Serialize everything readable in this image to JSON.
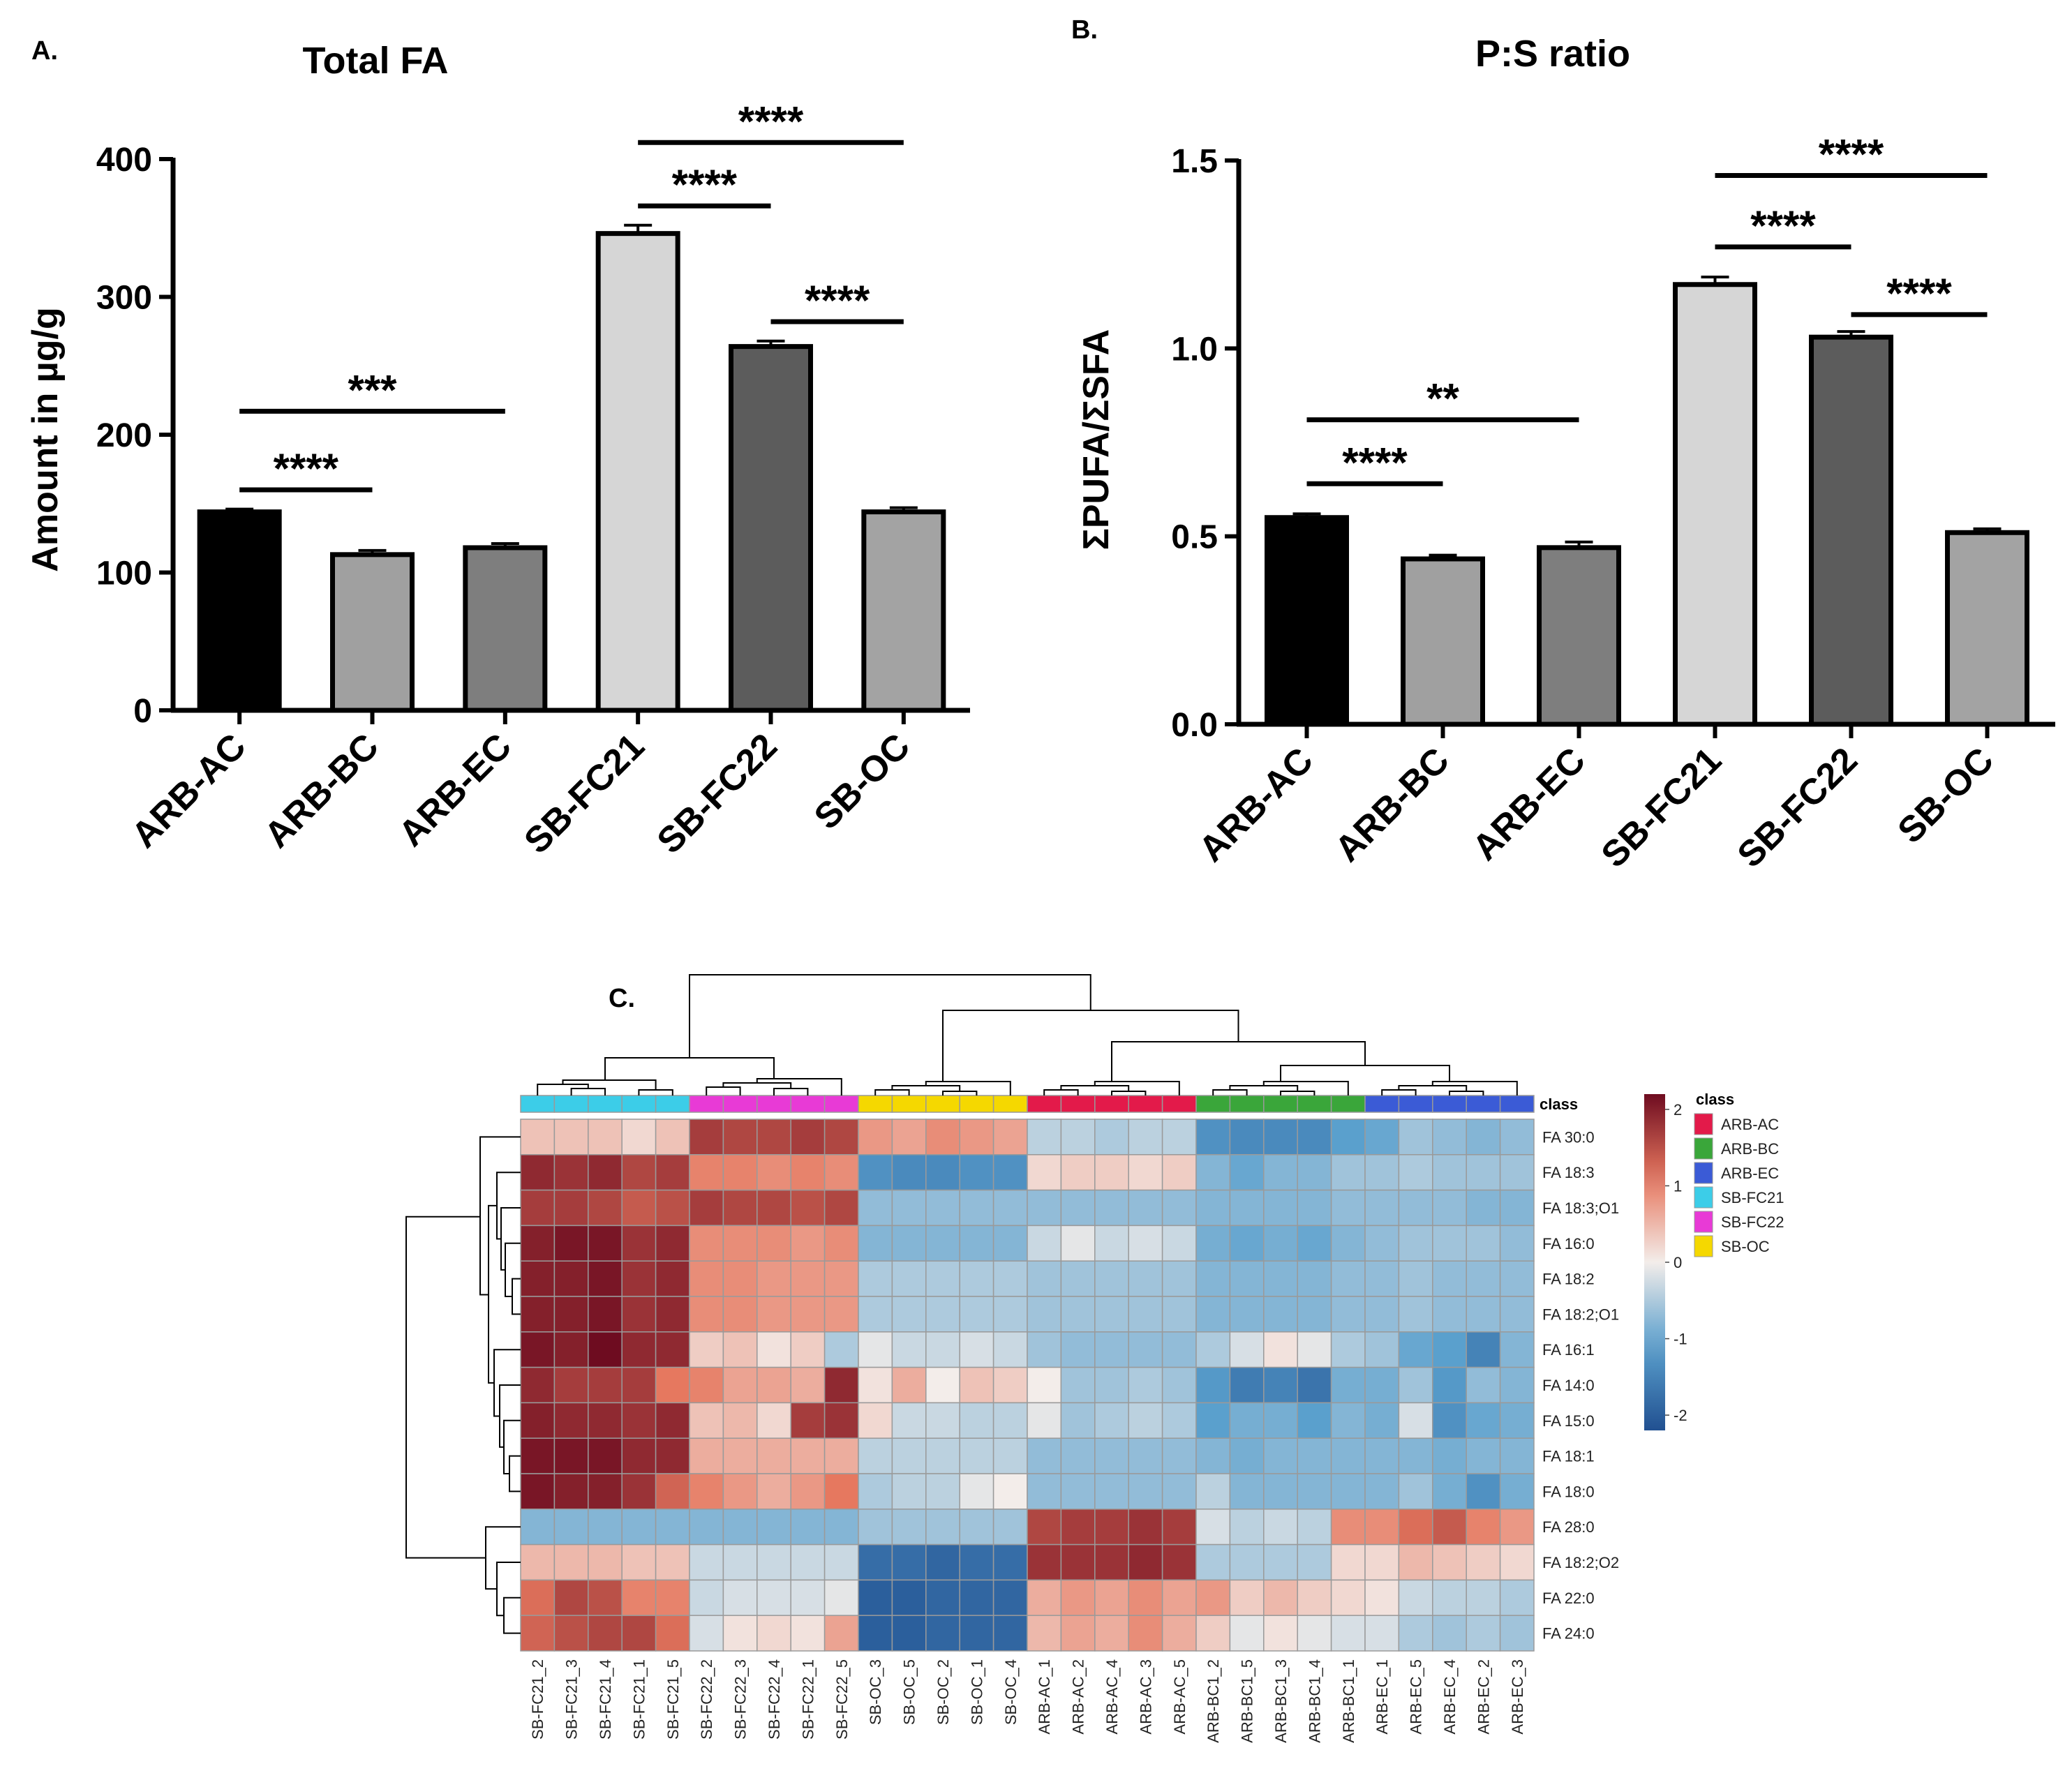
{
  "chart_data": [
    {
      "type": "bar",
      "panel": "A.",
      "title": "Total FA",
      "ylabel": "Amount in µg/g",
      "xlabel": "",
      "categories": [
        "ARB-AC",
        "ARB-BC",
        "ARB-EC",
        "SB-FC21",
        "SB-FC22",
        "SB-OC"
      ],
      "values": [
        144,
        113,
        118,
        346,
        264,
        144
      ],
      "errors": [
        2,
        3,
        3,
        6,
        4,
        3
      ],
      "colors": [
        "#000000",
        "#a0a0a0",
        "#7e7e7e",
        "#d6d6d6",
        "#5c5c5c",
        "#a3a3a3"
      ],
      "ylim": [
        0,
        400
      ],
      "yticks": [
        0,
        100,
        200,
        300,
        400
      ],
      "ytick_labels": [
        "0",
        "100",
        "200",
        "300",
        "400"
      ],
      "significance": [
        {
          "from": 0,
          "to": 1,
          "label": "****",
          "y": 160
        },
        {
          "from": 0,
          "to": 2,
          "label": "***",
          "y": 217
        },
        {
          "from": 3,
          "to": 4,
          "label": "****",
          "y": 366
        },
        {
          "from": 3,
          "to": 5,
          "label": "****",
          "y": 412
        },
        {
          "from": 4,
          "to": 5,
          "label": "****",
          "y": 282
        }
      ]
    },
    {
      "type": "bar",
      "panel": "B.",
      "title": "P:S ratio",
      "ylabel": "ΣPUFA/ΣSFA",
      "xlabel": "",
      "categories": [
        "ARB-AC",
        "ARB-BC",
        "ARB-EC",
        "SB-FC21",
        "SB-FC22",
        "SB-OC"
      ],
      "values": [
        0.55,
        0.44,
        0.47,
        1.17,
        1.03,
        0.51
      ],
      "errors": [
        0.01,
        0.01,
        0.015,
        0.02,
        0.015,
        0.01
      ],
      "colors": [
        "#000000",
        "#a0a0a0",
        "#7e7e7e",
        "#d6d6d6",
        "#5c5c5c",
        "#a3a3a3"
      ],
      "ylim": [
        0,
        1.5
      ],
      "yticks": [
        0,
        0.5,
        1.0,
        1.5
      ],
      "ytick_labels": [
        "0.0",
        "0.5",
        "1.0",
        "1.5"
      ],
      "significance": [
        {
          "from": 0,
          "to": 1,
          "label": "****",
          "y": 0.64
        },
        {
          "from": 0,
          "to": 2,
          "label": "**",
          "y": 0.81
        },
        {
          "from": 3,
          "to": 4,
          "label": "****",
          "y": 1.27
        },
        {
          "from": 3,
          "to": 5,
          "label": "****",
          "y": 1.46
        },
        {
          "from": 4,
          "to": 5,
          "label": "****",
          "y": 1.09
        }
      ]
    },
    {
      "type": "heatmap",
      "panel": "C.",
      "class_header": "class",
      "legend_title": "class",
      "colorbar_ticks": [
        2,
        1,
        0,
        -1,
        -2
      ],
      "colorbar_tick_labels": [
        "2",
        "1",
        "0",
        "-1",
        "-2"
      ],
      "classes": [
        {
          "name": "ARB-AC",
          "color": "#e31a4a"
        },
        {
          "name": "ARB-BC",
          "color": "#3aa63a"
        },
        {
          "name": "ARB-EC",
          "color": "#3b5bd6"
        },
        {
          "name": "SB-FC21",
          "color": "#3ccde8"
        },
        {
          "name": "SB-FC22",
          "color": "#e83ad6"
        },
        {
          "name": "SB-OC",
          "color": "#f5d800"
        }
      ],
      "columns": [
        "SB-FC21_2",
        "SB-FC21_3",
        "SB-FC21_4",
        "SB-FC21_1",
        "SB-FC21_5",
        "SB-FC22_2",
        "SB-FC22_3",
        "SB-FC22_4",
        "SB-FC22_1",
        "SB-FC22_5",
        "SB-OC_3",
        "SB-OC_5",
        "SB-OC_2",
        "SB-OC_1",
        "SB-OC_4",
        "ARB-AC_1",
        "ARB-AC_2",
        "ARB-AC_4",
        "ARB-AC_3",
        "ARB-AC_5",
        "ARB-BC1_2",
        "ARB-BC1_5",
        "ARB-BC1_3",
        "ARB-BC1_4",
        "ARB-BC1_1",
        "ARB-EC_1",
        "ARB-EC_5",
        "ARB-EC_4",
        "ARB-EC_2",
        "ARB-EC_3"
      ],
      "column_class": [
        3,
        3,
        3,
        3,
        3,
        4,
        4,
        4,
        4,
        4,
        5,
        5,
        5,
        5,
        5,
        0,
        0,
        0,
        0,
        0,
        1,
        1,
        1,
        1,
        1,
        2,
        2,
        2,
        2,
        2
      ],
      "rows": [
        "FA 30:0",
        "FA 18:3",
        "FA 18:3;O1",
        "FA 16:0",
        "FA 18:2",
        "FA 18:2;O1",
        "FA 16:1",
        "FA 14:0",
        "FA 15:0",
        "FA 18:1",
        "FA 18:0",
        "FA 28:0",
        "FA 18:2;O2",
        "FA 22:0",
        "FA 24:0"
      ],
      "values": [
        [
          0.4,
          0.4,
          0.4,
          0.2,
          0.4,
          1.7,
          1.6,
          1.6,
          1.7,
          1.6,
          0.8,
          0.7,
          0.9,
          0.8,
          0.7,
          -0.4,
          -0.4,
          -0.5,
          -0.4,
          -0.4,
          -1.3,
          -1.4,
          -1.4,
          -1.4,
          -1.1,
          -1.0,
          -0.6,
          -0.7,
          -0.8,
          -0.7
        ],
        [
          1.9,
          1.8,
          1.9,
          1.6,
          1.7,
          1.0,
          1.0,
          0.9,
          1.0,
          0.9,
          -1.3,
          -1.4,
          -1.4,
          -1.3,
          -1.3,
          0.2,
          0.3,
          0.3,
          0.2,
          0.3,
          -0.8,
          -1.0,
          -0.8,
          -0.8,
          -0.6,
          -0.6,
          -0.5,
          -0.6,
          -0.6,
          -0.6
        ],
        [
          1.7,
          1.7,
          1.6,
          1.4,
          1.5,
          1.7,
          1.6,
          1.6,
          1.5,
          1.6,
          -0.7,
          -0.7,
          -0.7,
          -0.7,
          -0.7,
          -0.7,
          -0.7,
          -0.7,
          -0.7,
          -0.7,
          -0.8,
          -0.8,
          -0.8,
          -0.8,
          -0.7,
          -0.7,
          -0.7,
          -0.7,
          -0.8,
          -0.8
        ],
        [
          2.0,
          2.1,
          2.1,
          1.8,
          1.9,
          0.9,
          0.9,
          0.9,
          0.8,
          0.9,
          -0.8,
          -0.8,
          -0.8,
          -0.8,
          -0.8,
          -0.3,
          -0.1,
          -0.3,
          -0.2,
          -0.3,
          -0.9,
          -1.0,
          -0.9,
          -1.0,
          -0.8,
          -0.7,
          -0.6,
          -0.6,
          -0.6,
          -0.7
        ],
        [
          2.0,
          2.0,
          2.1,
          1.8,
          1.9,
          0.9,
          0.9,
          0.8,
          0.8,
          0.8,
          -0.5,
          -0.5,
          -0.5,
          -0.5,
          -0.5,
          -0.6,
          -0.6,
          -0.6,
          -0.6,
          -0.6,
          -0.8,
          -0.8,
          -0.8,
          -0.8,
          -0.7,
          -0.7,
          -0.6,
          -0.7,
          -0.7,
          -0.7
        ],
        [
          2.0,
          2.0,
          2.1,
          1.8,
          1.9,
          0.9,
          0.9,
          0.8,
          0.8,
          0.8,
          -0.5,
          -0.5,
          -0.5,
          -0.5,
          -0.5,
          -0.6,
          -0.6,
          -0.6,
          -0.6,
          -0.6,
          -0.8,
          -0.8,
          -0.8,
          -0.8,
          -0.7,
          -0.7,
          -0.6,
          -0.7,
          -0.7,
          -0.7
        ],
        [
          2.1,
          2.0,
          2.2,
          1.9,
          1.9,
          0.3,
          0.4,
          0.1,
          0.3,
          -0.5,
          -0.1,
          -0.3,
          -0.3,
          -0.2,
          -0.3,
          -0.6,
          -0.7,
          -0.7,
          -0.7,
          -0.7,
          -0.5,
          -0.2,
          0.1,
          -0.1,
          -0.5,
          -0.6,
          -1.0,
          -1.1,
          -1.5,
          -0.8
        ],
        [
          1.9,
          1.7,
          1.7,
          1.7,
          1.1,
          1.0,
          0.7,
          0.7,
          0.6,
          1.9,
          0.1,
          0.6,
          0.0,
          0.4,
          0.3,
          0.0,
          -0.6,
          -0.6,
          -0.5,
          -0.6,
          -1.2,
          -1.6,
          -1.5,
          -1.7,
          -0.9,
          -0.9,
          -0.6,
          -1.2,
          -0.7,
          -0.8
        ],
        [
          2.0,
          1.9,
          1.9,
          1.8,
          1.9,
          0.4,
          0.5,
          0.2,
          1.7,
          1.8,
          0.2,
          -0.3,
          -0.3,
          -0.4,
          -0.4,
          -0.1,
          -0.6,
          -0.5,
          -0.4,
          -0.5,
          -1.1,
          -0.9,
          -0.9,
          -1.1,
          -0.8,
          -0.9,
          -0.2,
          -1.3,
          -1.0,
          -0.9
        ],
        [
          2.1,
          2.1,
          2.1,
          1.9,
          1.9,
          0.6,
          0.6,
          0.6,
          0.6,
          0.6,
          -0.4,
          -0.4,
          -0.4,
          -0.4,
          -0.4,
          -0.7,
          -0.7,
          -0.7,
          -0.7,
          -0.7,
          -0.8,
          -0.9,
          -0.8,
          -0.8,
          -0.8,
          -0.8,
          -0.8,
          -0.9,
          -0.8,
          -0.8
        ],
        [
          2.1,
          2.0,
          2.0,
          1.8,
          1.3,
          1.0,
          0.8,
          0.6,
          0.8,
          1.1,
          -0.5,
          -0.4,
          -0.4,
          -0.1,
          0.0,
          -0.7,
          -0.7,
          -0.7,
          -0.7,
          -0.7,
          -0.4,
          -0.8,
          -0.8,
          -0.8,
          -0.8,
          -0.8,
          -0.6,
          -0.9,
          -1.3,
          -0.9
        ],
        [
          -0.8,
          -0.8,
          -0.8,
          -0.8,
          -0.8,
          -0.8,
          -0.8,
          -0.8,
          -0.8,
          -0.8,
          -0.6,
          -0.6,
          -0.6,
          -0.6,
          -0.6,
          1.6,
          1.7,
          1.7,
          1.8,
          1.7,
          -0.2,
          -0.4,
          -0.3,
          -0.4,
          0.9,
          0.9,
          1.2,
          1.4,
          1.0,
          0.8
        ],
        [
          0.5,
          0.5,
          0.5,
          0.4,
          0.4,
          -0.3,
          -0.3,
          -0.3,
          -0.3,
          -0.3,
          -1.8,
          -1.8,
          -1.9,
          -1.8,
          -1.8,
          1.8,
          1.8,
          1.8,
          1.9,
          1.8,
          -0.5,
          -0.5,
          -0.5,
          -0.5,
          0.2,
          0.2,
          0.5,
          0.4,
          0.3,
          0.2
        ],
        [
          1.2,
          1.6,
          1.5,
          1.0,
          1.0,
          -0.3,
          -0.2,
          -0.2,
          -0.2,
          -0.1,
          -2.0,
          -2.0,
          -1.9,
          -1.9,
          -1.9,
          0.6,
          0.8,
          0.7,
          0.9,
          0.7,
          0.8,
          0.3,
          0.5,
          0.3,
          0.2,
          0.1,
          -0.3,
          -0.4,
          -0.4,
          -0.5
        ],
        [
          1.3,
          1.5,
          1.6,
          1.6,
          1.2,
          -0.2,
          0.1,
          0.2,
          0.1,
          0.7,
          -2.0,
          -2.0,
          -1.9,
          -1.9,
          -1.9,
          0.5,
          0.7,
          0.6,
          0.9,
          0.6,
          0.3,
          -0.1,
          0.1,
          -0.1,
          -0.2,
          -0.2,
          -0.5,
          -0.6,
          -0.5,
          -0.6
        ]
      ]
    }
  ]
}
